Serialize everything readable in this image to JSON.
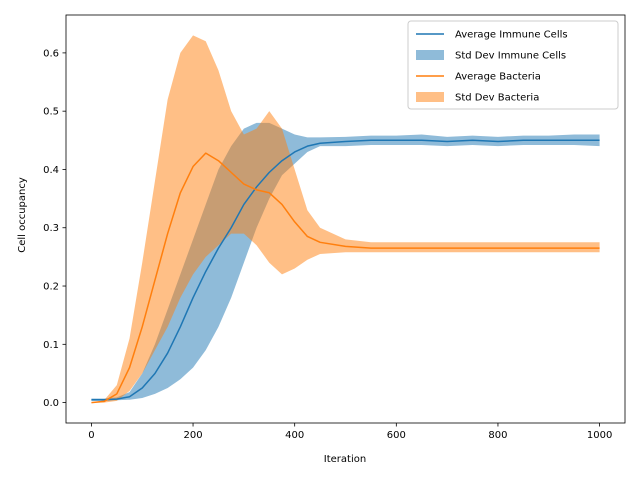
{
  "chart_data": {
    "type": "line",
    "xlabel": "Iteration",
    "ylabel": "Cell occupancy",
    "xlim": [
      -50,
      1050
    ],
    "ylim": [
      -0.035,
      0.665
    ],
    "xticks": [
      0,
      200,
      400,
      600,
      800,
      1000
    ],
    "yticks": [
      0.0,
      0.1,
      0.2,
      0.3,
      0.4,
      0.5,
      0.6
    ],
    "xtick_labels": [
      "0",
      "200",
      "400",
      "600",
      "800",
      "1000"
    ],
    "ytick_labels": [
      "0.0",
      "0.1",
      "0.2",
      "0.3",
      "0.4",
      "0.5",
      "0.6"
    ],
    "legend_position": "top-right",
    "grid": false,
    "series": [
      {
        "name": "Average Immune Cells",
        "kind": "line",
        "color": "#1f77b4",
        "x": [
          0,
          25,
          50,
          75,
          100,
          125,
          150,
          175,
          200,
          225,
          250,
          275,
          300,
          325,
          350,
          375,
          400,
          425,
          450,
          500,
          550,
          600,
          650,
          700,
          750,
          800,
          850,
          900,
          950,
          1000
        ],
        "values": [
          0.005,
          0.005,
          0.006,
          0.01,
          0.025,
          0.05,
          0.085,
          0.13,
          0.18,
          0.225,
          0.265,
          0.3,
          0.34,
          0.37,
          0.395,
          0.415,
          0.43,
          0.44,
          0.445,
          0.448,
          0.45,
          0.45,
          0.45,
          0.448,
          0.45,
          0.448,
          0.45,
          0.45,
          0.45,
          0.45
        ]
      },
      {
        "name": "Std Dev Immune Cells",
        "kind": "band",
        "color": "#1f77b4",
        "opacity": 0.5,
        "x": [
          0,
          25,
          50,
          75,
          100,
          125,
          150,
          175,
          200,
          225,
          250,
          275,
          300,
          325,
          350,
          375,
          400,
          425,
          450,
          500,
          550,
          600,
          650,
          700,
          750,
          800,
          850,
          900,
          950,
          1000
        ],
        "lower": [
          0.003,
          0.003,
          0.004,
          0.005,
          0.008,
          0.015,
          0.025,
          0.04,
          0.06,
          0.09,
          0.13,
          0.18,
          0.24,
          0.3,
          0.35,
          0.39,
          0.41,
          0.43,
          0.44,
          0.44,
          0.442,
          0.442,
          0.442,
          0.44,
          0.442,
          0.44,
          0.442,
          0.442,
          0.442,
          0.44
        ],
        "upper": [
          0.007,
          0.007,
          0.009,
          0.018,
          0.05,
          0.1,
          0.16,
          0.22,
          0.28,
          0.34,
          0.4,
          0.44,
          0.47,
          0.48,
          0.48,
          0.47,
          0.46,
          0.455,
          0.455,
          0.456,
          0.458,
          0.458,
          0.46,
          0.456,
          0.458,
          0.456,
          0.458,
          0.458,
          0.46,
          0.46
        ]
      },
      {
        "name": "Average Bacteria",
        "kind": "line",
        "color": "#ff7f0e",
        "x": [
          0,
          25,
          50,
          75,
          100,
          125,
          150,
          175,
          200,
          225,
          250,
          275,
          300,
          325,
          350,
          375,
          400,
          425,
          450,
          500,
          550,
          600,
          650,
          700,
          750,
          800,
          850,
          900,
          950,
          1000
        ],
        "values": [
          0.0,
          0.002,
          0.015,
          0.06,
          0.13,
          0.21,
          0.29,
          0.36,
          0.405,
          0.428,
          0.415,
          0.395,
          0.375,
          0.365,
          0.36,
          0.34,
          0.31,
          0.285,
          0.275,
          0.268,
          0.265,
          0.265,
          0.265,
          0.265,
          0.265,
          0.265,
          0.265,
          0.265,
          0.265,
          0.265
        ]
      },
      {
        "name": "Std Dev Bacteria",
        "kind": "band",
        "color": "#ff7f0e",
        "opacity": 0.5,
        "x": [
          0,
          25,
          50,
          75,
          100,
          125,
          150,
          175,
          200,
          225,
          250,
          275,
          300,
          325,
          350,
          375,
          400,
          425,
          450,
          500,
          550,
          600,
          650,
          700,
          750,
          800,
          850,
          900,
          950,
          1000
        ],
        "lower": [
          0.0,
          0.0,
          0.003,
          0.02,
          0.05,
          0.09,
          0.13,
          0.18,
          0.22,
          0.25,
          0.27,
          0.29,
          0.29,
          0.27,
          0.24,
          0.22,
          0.23,
          0.245,
          0.255,
          0.258,
          0.258,
          0.258,
          0.258,
          0.258,
          0.258,
          0.258,
          0.258,
          0.258,
          0.258,
          0.258
        ],
        "upper": [
          0.0,
          0.004,
          0.03,
          0.11,
          0.24,
          0.38,
          0.52,
          0.6,
          0.63,
          0.62,
          0.57,
          0.5,
          0.46,
          0.47,
          0.5,
          0.47,
          0.4,
          0.33,
          0.3,
          0.28,
          0.275,
          0.275,
          0.275,
          0.275,
          0.275,
          0.275,
          0.275,
          0.275,
          0.275,
          0.275
        ]
      }
    ]
  }
}
